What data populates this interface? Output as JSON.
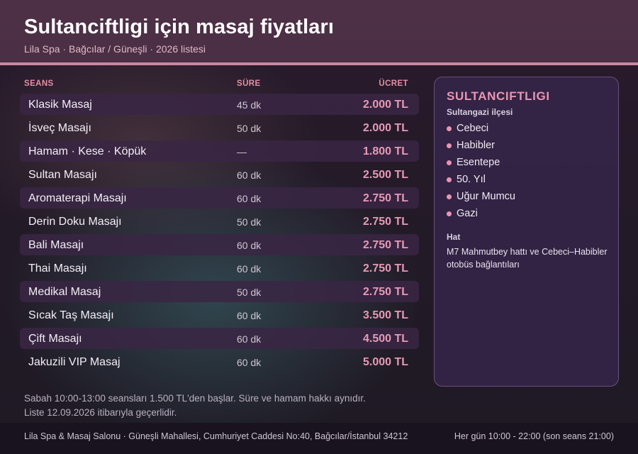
{
  "header": {
    "title": "Sultanciftligi için masaj fiyatları",
    "subtitle": "Lila Spa · Bağcılar / Güneşli · 2026 listesi"
  },
  "table": {
    "headers": {
      "session": "SEANS",
      "duration": "SÜRE",
      "price": "ÜCRET"
    },
    "rows": [
      {
        "name": "Klasik Masaj",
        "duration": "45 dk",
        "price": "2.000 TL"
      },
      {
        "name": "İsveç Masajı",
        "duration": "50 dk",
        "price": "2.000 TL"
      },
      {
        "name": "Hamam · Kese · Köpük",
        "duration": "—",
        "price": "1.800 TL"
      },
      {
        "name": "Sultan Masajı",
        "duration": "60 dk",
        "price": "2.500 TL"
      },
      {
        "name": "Aromaterapi Masajı",
        "duration": "60 dk",
        "price": "2.750 TL"
      },
      {
        "name": "Derin Doku Masajı",
        "duration": "50 dk",
        "price": "2.750 TL"
      },
      {
        "name": "Bali Masajı",
        "duration": "60 dk",
        "price": "2.750 TL"
      },
      {
        "name": "Thai Masajı",
        "duration": "60 dk",
        "price": "2.750 TL"
      },
      {
        "name": "Medikal Masaj",
        "duration": "50 dk",
        "price": "2.750 TL"
      },
      {
        "name": "Sıcak Taş Masajı",
        "duration": "60 dk",
        "price": "3.500 TL"
      },
      {
        "name": "Çift Masajı",
        "duration": "60 dk",
        "price": "4.500 TL"
      },
      {
        "name": "Jakuzili VIP Masaj",
        "duration": "60 dk",
        "price": "5.000 TL"
      }
    ]
  },
  "sidebar": {
    "title": "SULTANCIFTLIGI",
    "subtitle": "Sultangazi ilçesi",
    "neighborhoods": [
      "Cebeci",
      "Habibler",
      "Esentepe",
      "50. Yıl",
      "Uğur Mumcu",
      "Gazi"
    ],
    "transit_label": "Hat",
    "transit_text": "M7 Mahmutbey hattı ve Cebeci–Habibler otobüs bağlantıları"
  },
  "notes": {
    "line1": "Sabah 10:00-13:00 seansları 1.500 TL'den başlar. Süre ve hamam hakkı aynıdır.",
    "line2": "Liste 12.09.2026 itibarıyla geçerlidir."
  },
  "footer": {
    "address": "Lila Spa & Masaj Salonu · Güneşli Mahallesi, Cumhuriyet Caddesi No:40, Bağcılar/İstanbul 34212",
    "hours": "Her gün 10:00 - 22:00 (son seans 21:00)"
  },
  "colors": {
    "accent": "#e896b2",
    "header_bg": "#4e3046",
    "header_rule": "#c9899f",
    "row_shade": "#3a2644"
  }
}
